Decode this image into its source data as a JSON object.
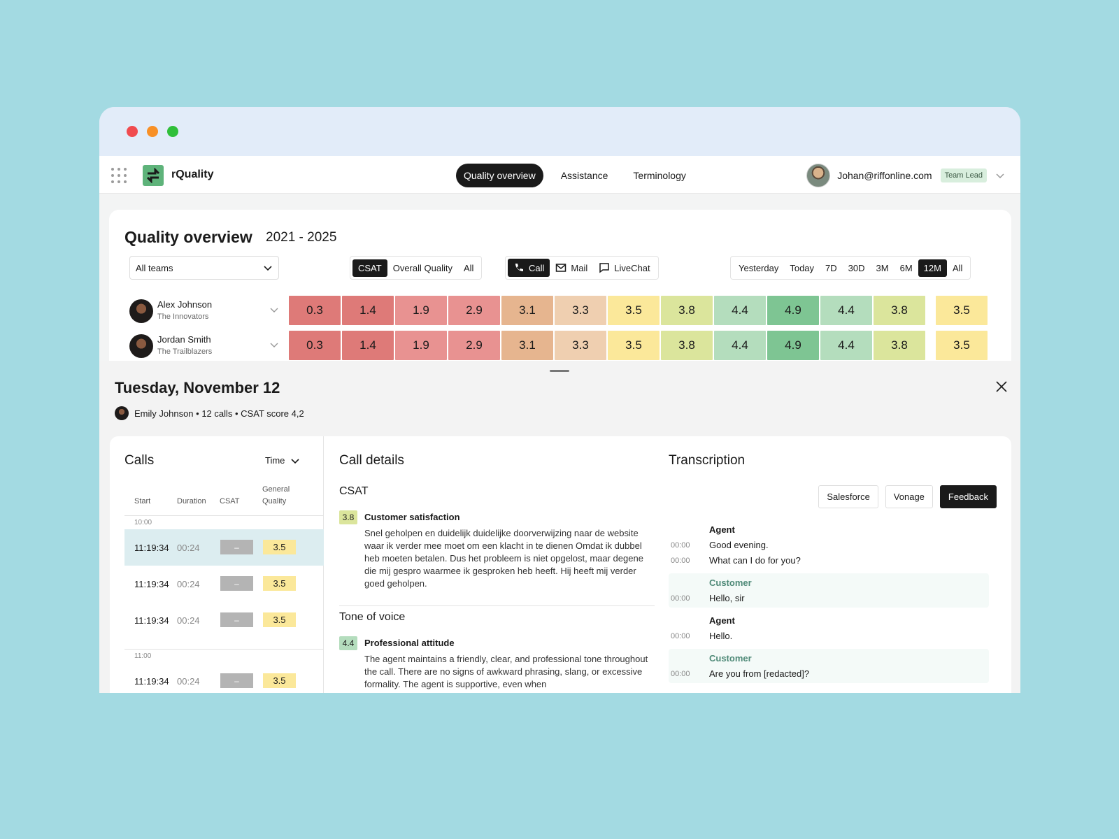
{
  "app": {
    "name": "rQuality"
  },
  "nav": {
    "items": [
      "Quality overview",
      "Assistance",
      "Terminology"
    ],
    "active": 0
  },
  "user": {
    "email": "Johan@riffonline.com",
    "role": "Team Lead"
  },
  "overview": {
    "title": "Quality overview",
    "range": "2021 - 2025",
    "team_select": "All teams",
    "metric_filter": {
      "options": [
        "CSAT",
        "Overall Quality",
        "All"
      ],
      "active": 0
    },
    "channel_filter": {
      "options": [
        "Call",
        "Mail",
        "LiveChat"
      ],
      "icons": [
        "phone-icon",
        "mail-icon",
        "chat-icon"
      ],
      "active": 0
    },
    "period_filter": {
      "options": [
        "Yesterday",
        "Today",
        "7D",
        "30D",
        "3M",
        "6M",
        "12M",
        "All"
      ],
      "active": 6
    },
    "agents": [
      {
        "name": "Alex Johnson",
        "team": "The Innovators",
        "scores": [
          "0.3",
          "1.4",
          "1.9",
          "2.9",
          "3.1",
          "3.3",
          "3.5",
          "3.8",
          "4.4",
          "4.9",
          "4.4",
          "3.8"
        ],
        "total": "3.5"
      },
      {
        "name": "Jordan Smith",
        "team": "The Trailblazers",
        "scores": [
          "0.3",
          "1.4",
          "1.9",
          "2.9",
          "3.1",
          "3.3",
          "3.5",
          "3.8",
          "4.4",
          "4.9",
          "4.4",
          "3.8"
        ],
        "total": "3.5"
      }
    ],
    "score_colors": {
      "0.3": "#de7a78",
      "1.4": "#de7a78",
      "1.9": "#e89291",
      "2.9": "#e89291",
      "3.1": "#e6b58f",
      "3.3": "#efcfb0",
      "3.5": "#fbe89a",
      "3.8": "#dbe59c",
      "4.4": "#b4ddbd",
      "4.9": "#7ec593"
    }
  },
  "drawer": {
    "title": "Tuesday, November 12",
    "meta": "Emily Johnson • 12 calls • CSAT score 4,2"
  },
  "calls": {
    "title": "Calls",
    "sort_label": "Time",
    "columns": [
      "Start",
      "Duration",
      "CSAT",
      "General Quality"
    ],
    "groups": [
      {
        "label": "10:00",
        "rows": [
          {
            "start": "11:19:34",
            "duration": "00:24",
            "csat": "–",
            "gq": "3.5",
            "selected": true
          },
          {
            "start": "11:19:34",
            "duration": "00:24",
            "csat": "–",
            "gq": "3.5"
          },
          {
            "start": "11:19:34",
            "duration": "00:24",
            "csat": "–",
            "gq": "3.5"
          }
        ]
      },
      {
        "label": "11:00",
        "rows": [
          {
            "start": "11:19:34",
            "duration": "00:24",
            "csat": "–",
            "gq": "3.5"
          }
        ]
      }
    ]
  },
  "details": {
    "title": "Call details",
    "sections": [
      {
        "heading": "CSAT",
        "score": "3.8",
        "color": "#dbe59c",
        "criterion": "Customer satisfaction",
        "text": "Snel geholpen en duidelijk duidelijke doorverwijzing naar de website waar ik verder mee moet om een klacht in te dienen Omdat ik dubbel heb moeten betalen. Dus het probleem is niet opgelost, maar degene die mij gespro waarmee ik gesproken heb heeft. Hij heeft mij verder goed geholpen."
      },
      {
        "heading": "Tone of voice",
        "score": "4.4",
        "color": "#b4ddbd",
        "criterion": "Professional attitude",
        "text": "The agent maintains a friendly, clear, and professional tone throughout the call. There are no signs of awkward phrasing, slang, or excessive formality. The agent is supportive, even when"
      }
    ]
  },
  "transcription": {
    "title": "Transcription",
    "buttons": [
      "Salesforce",
      "Vonage",
      "Feedback"
    ],
    "blocks": [
      {
        "speaker": "Agent",
        "lines": [
          {
            "ts": "00:00",
            "text": "Good evening."
          },
          {
            "ts": "00:00",
            "text": "What can I do for you?"
          }
        ]
      },
      {
        "speaker": "Customer",
        "lines": [
          {
            "ts": "00:00",
            "text": "Hello, sir"
          }
        ]
      },
      {
        "speaker": "Agent",
        "lines": [
          {
            "ts": "00:00",
            "text": "Hello."
          }
        ]
      },
      {
        "speaker": "Customer",
        "lines": [
          {
            "ts": "00:00",
            "text": "Are you from [redacted]?"
          }
        ]
      }
    ]
  }
}
